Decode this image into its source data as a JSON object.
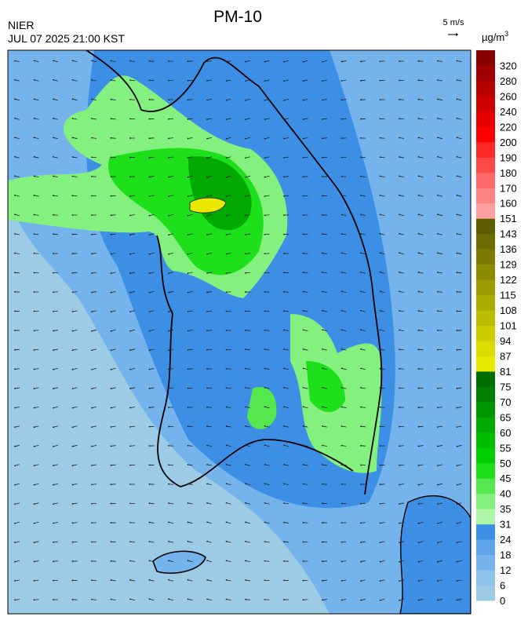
{
  "header": {
    "title": "PM-10",
    "agency": "NIER",
    "datetime": "JUL 07 2025 21:00 KST",
    "wind_scale": "5 m/s"
  },
  "legend": {
    "unit": "µg/m",
    "unit_exponent": "3",
    "bins": [
      {
        "value": 0,
        "color": "#9ccbe6"
      },
      {
        "value": 6,
        "color": "#8ec2ea"
      },
      {
        "value": 12,
        "color": "#74b3ec"
      },
      {
        "value": 18,
        "color": "#5fa5ec"
      },
      {
        "value": 24,
        "color": "#3d8fe6"
      },
      {
        "value": 31,
        "color": "#aef5a8"
      },
      {
        "value": 35,
        "color": "#84f07e"
      },
      {
        "value": 40,
        "color": "#55e84e"
      },
      {
        "value": 45,
        "color": "#1ee01a"
      },
      {
        "value": 50,
        "color": "#00d000"
      },
      {
        "value": 55,
        "color": "#00be00"
      },
      {
        "value": 60,
        "color": "#00aa00"
      },
      {
        "value": 65,
        "color": "#009600"
      },
      {
        "value": 70,
        "color": "#008200"
      },
      {
        "value": 75,
        "color": "#006e00"
      },
      {
        "value": 81,
        "color": "#eaea00"
      },
      {
        "value": 87,
        "color": "#dcdc00"
      },
      {
        "value": 94,
        "color": "#cccc00"
      },
      {
        "value": 101,
        "color": "#bcbc00"
      },
      {
        "value": 108,
        "color": "#acac00"
      },
      {
        "value": 115,
        "color": "#9c9c00"
      },
      {
        "value": 122,
        "color": "#8c8c00"
      },
      {
        "value": 129,
        "color": "#7c7c00"
      },
      {
        "value": 136,
        "color": "#6c6c00"
      },
      {
        "value": 143,
        "color": "#5c5c00"
      },
      {
        "value": 151,
        "color": "#ffa0a0"
      },
      {
        "value": 160,
        "color": "#ff8484"
      },
      {
        "value": 170,
        "color": "#ff6868"
      },
      {
        "value": 180,
        "color": "#ff4848"
      },
      {
        "value": 190,
        "color": "#ff2828"
      },
      {
        "value": 200,
        "color": "#ff0000"
      },
      {
        "value": 220,
        "color": "#e80000"
      },
      {
        "value": 240,
        "color": "#d00000"
      },
      {
        "value": 260,
        "color": "#b80000"
      },
      {
        "value": 280,
        "color": "#a00000"
      },
      {
        "value": 320,
        "color": "#880000"
      }
    ]
  }
}
